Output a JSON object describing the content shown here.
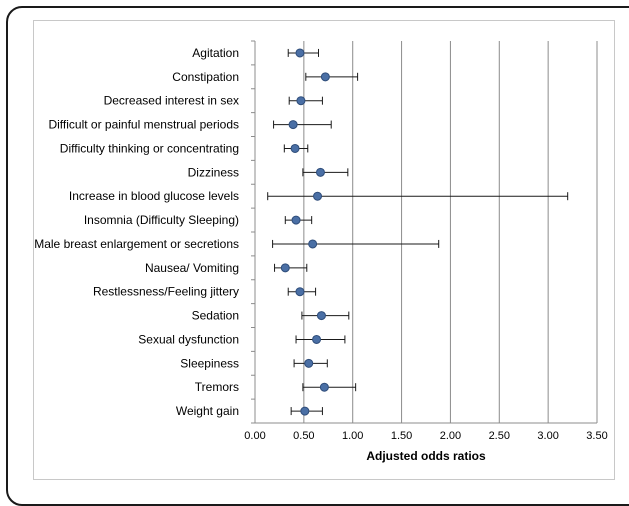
{
  "chart_data": {
    "type": "scatter",
    "orientation": "horizontal",
    "title": "",
    "xlabel": "Adjusted odds ratios",
    "ylabel": "",
    "xlim": [
      0,
      3.5
    ],
    "xticks": [
      "0.00",
      "0.50",
      "1.00",
      "1.50",
      "2.00",
      "2.50",
      "3.00",
      "3.50"
    ],
    "grid": "vertical",
    "legend": "none",
    "marker_color": "#4a6fa5",
    "marker_stroke": "#2f4d7a",
    "categories": [
      "Agitation",
      "Constipation",
      "Decreased interest in sex",
      "Difficult or painful menstrual periods",
      "Difficulty thinking or concentrating",
      "Dizziness",
      "Increase in blood glucose levels",
      "Insomnia (Difficulty Sleeping)",
      "Male breast enlargement or secretions",
      "Nausea/ Vomiting",
      "Restlessness/Feeling jittery",
      "Sedation",
      "Sexual dysfunction",
      "Sleepiness",
      "Tremors",
      "Weight gain"
    ],
    "values": [
      0.46,
      0.72,
      0.47,
      0.39,
      0.41,
      0.67,
      0.64,
      0.42,
      0.59,
      0.31,
      0.46,
      0.68,
      0.63,
      0.55,
      0.71,
      0.51
    ],
    "ci_low": [
      0.34,
      0.52,
      0.35,
      0.19,
      0.3,
      0.49,
      0.13,
      0.31,
      0.18,
      0.2,
      0.34,
      0.48,
      0.42,
      0.4,
      0.49,
      0.37
    ],
    "ci_high": [
      0.65,
      1.05,
      0.69,
      0.78,
      0.54,
      0.95,
      3.2,
      0.58,
      1.88,
      0.53,
      0.62,
      0.96,
      0.92,
      0.74,
      1.03,
      0.69
    ]
  }
}
